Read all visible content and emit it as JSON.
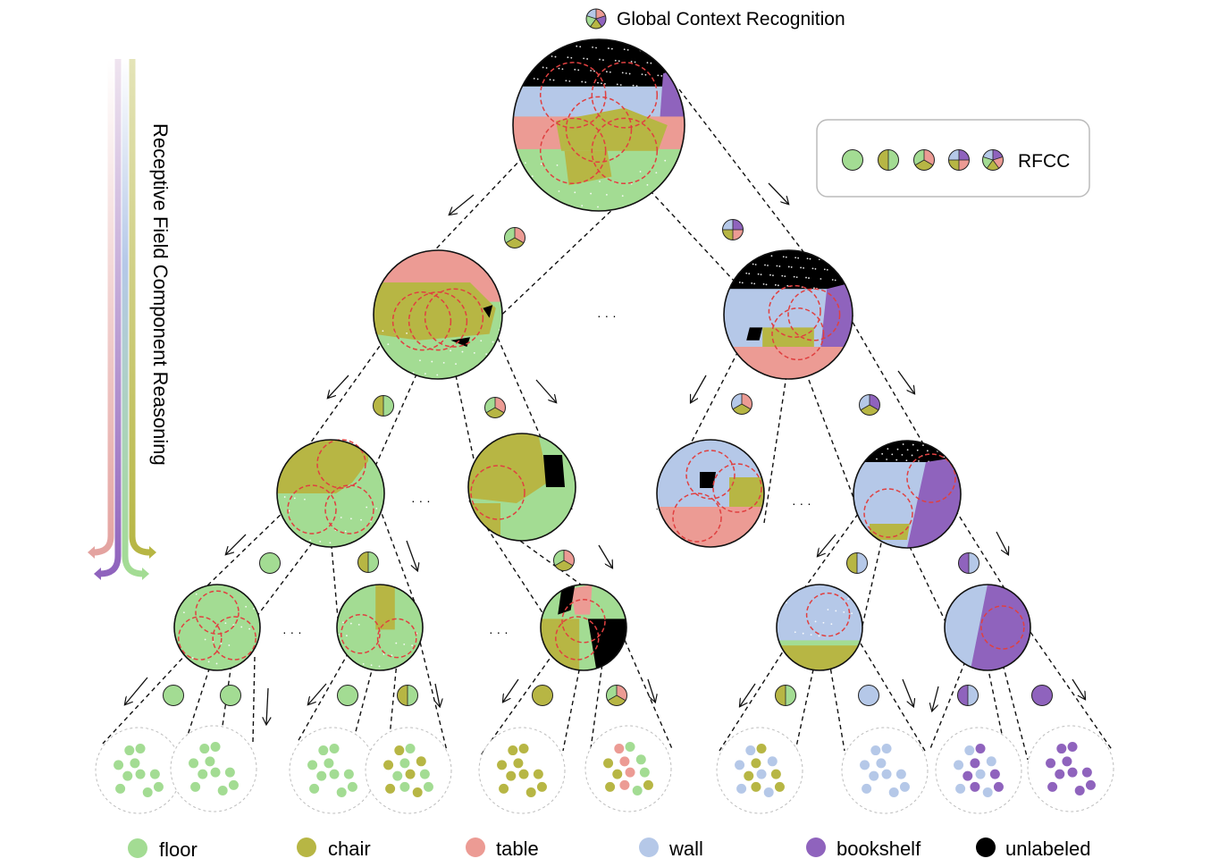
{
  "title": "Global Context Recognition",
  "side_label": "Receptive Field Component Reasoning",
  "rfcc_label": "RFCC",
  "ellipsis": "· · ·",
  "classes": [
    {
      "id": "floor",
      "name": "floor",
      "color": "#a3dc93"
    },
    {
      "id": "chair",
      "name": "chair",
      "color": "#b7b644"
    },
    {
      "id": "table",
      "name": "table",
      "color": "#ec9b94"
    },
    {
      "id": "wall",
      "name": "wall",
      "color": "#b5c8e8"
    },
    {
      "id": "bookshelf",
      "name": "bookshelf",
      "color": "#8f63bd"
    },
    {
      "id": "unlabeled",
      "name": "unlabeled",
      "color": "#000000"
    }
  ],
  "colors": {
    "field_ring_red": "#e04040",
    "dashed_line": "#111111",
    "leaf_ring": "#bdbdbd",
    "side_arrow_pink": "#e4a3a0",
    "side_arrow_purple": "#8f63bd",
    "side_arrow_green": "#a3dc93",
    "side_arrow_olive": "#b7b644"
  },
  "rfcc_legend_icons": [
    [
      "floor"
    ],
    [
      "floor",
      "chair"
    ],
    [
      "table",
      "chair",
      "floor"
    ],
    [
      "bookshelf",
      "table",
      "chair",
      "wall"
    ],
    [
      "bookshelf",
      "table",
      "chair",
      "floor",
      "wall"
    ]
  ],
  "tree_icons": {
    "level1": [
      [
        "table",
        "chair",
        "floor"
      ],
      [
        "bookshelf",
        "table",
        "chair",
        "wall"
      ]
    ],
    "level2": [
      [
        "floor",
        "chair"
      ],
      [
        "table",
        "chair",
        "floor"
      ],
      [
        "table",
        "chair",
        "wall"
      ],
      [
        "bookshelf",
        "chair",
        "wall"
      ]
    ],
    "level3": [
      [
        "floor"
      ],
      [
        "floor",
        "chair"
      ],
      [
        "table",
        "chair",
        "floor"
      ],
      [
        "wall",
        "chair"
      ],
      [
        "wall",
        "bookshelf"
      ]
    ],
    "level4": [
      [
        "floor"
      ],
      [
        "floor"
      ],
      [
        "floor"
      ],
      [
        "floor",
        "chair"
      ],
      [
        "chair"
      ],
      [
        "table",
        "chair",
        "floor"
      ],
      [
        "floor",
        "chair"
      ],
      [
        "wall"
      ],
      [
        "wall",
        "bookshelf"
      ],
      [
        "bookshelf"
      ]
    ]
  },
  "leaf_clusters": [
    [
      "floor"
    ],
    [
      "floor"
    ],
    [
      "floor"
    ],
    [
      "chair",
      "floor"
    ],
    [
      "chair"
    ],
    [
      "table",
      "floor",
      "chair"
    ],
    [
      "wall",
      "chair"
    ],
    [
      "wall"
    ],
    [
      "wall",
      "bookshelf"
    ],
    [
      "bookshelf"
    ]
  ]
}
